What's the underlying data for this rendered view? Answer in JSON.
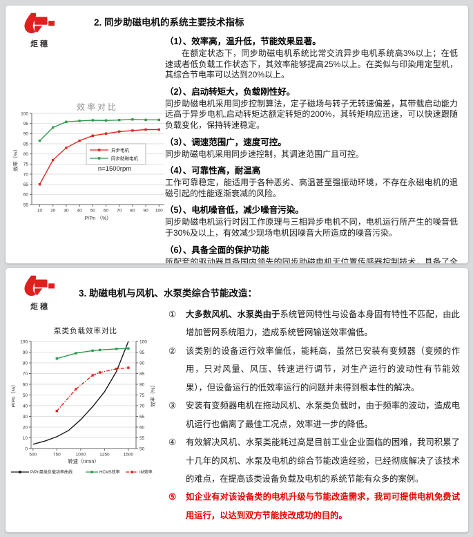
{
  "logo": {
    "text": "炬穗"
  },
  "section1": {
    "title": "2. 同步助磁电机的系统主要技术指标",
    "items": [
      {
        "heading": "（1）、效率高，温升低，节能效果显著。",
        "body": "在额定状态下，同步助磁电机系统比常交流异步电机系统高3%以上；在低速或者低负载工作状态下，其效率能够提高25%以上。在类似与印染用定型机，其综合节电率可以达到20%以上。"
      },
      {
        "heading": "（2）、启动转矩大，负载刚性好。",
        "body": "同步助磁电机采用同步控制算法，定子磁场与转子无转速偏差，其带载启动能力远高于异步电机,启动转矩达额定转矩的200%，其转矩响应迅速，可以快速跟随负载变化，保持转速稳定。"
      },
      {
        "heading": "（3）、调速范围广，速度可控。",
        "body": "同步助磁电机采用同步速控制，其调速范围广且可控。"
      },
      {
        "heading": "（4）、可靠性高，耐温高",
        "body": "工作可靠稳定，能适用于各种恶劣、高温甚至强振动环境，不存在永磁电机的退磁引起的性能逐渐衰减的风险。"
      },
      {
        "heading": "（5）、电机噪音低，减少噪音污染。",
        "body": "同步助磁电机运行时因工作原理与三相异步电机不同，电机运行所产生的噪音低于30%及以上，有效减少现场电机因噪音大所造成的噪音污染。"
      },
      {
        "heading": "（6）、具备全面的保护功能",
        "body": "所配套的驱动器具备国内领先的同步助磁电机无位置传感器控制技术，具备了全面的保护功能（过压、欠压、过流、短路、过载等）。"
      }
    ]
  },
  "section2": {
    "title": "3. 助磁电机与风机、水泵类综合节能改造：",
    "items": [
      {
        "num": "①",
        "lead": "大多数风机、水泵类由于",
        "body": "系统管网特性与设备本身固有特性不匹配，由此增加管网系统阻力，造成系统管网输送效率偏低。"
      },
      {
        "num": "②",
        "lead": "",
        "body": "该类别的设备运行效率偏低，能耗高，虽然已安装有变频器（变频的作用，只对风量、风压、转速进行调节，对生产运行的波动性有节能效果），但设备运行的低效率运行的问题并未得到根本性的解决。"
      },
      {
        "num": "③",
        "lead": "",
        "body": "安装有变频器电机在拖动风机、水泵类负载时，由于频率的波动，造成电机运行也偏离了最佳工况点，效率进一步的降低。"
      },
      {
        "num": "④",
        "lead": "",
        "body": "有效解决风机、水泵类能耗过高是目前工业企业面临的困难，我司积累了十几年的风机、水泵及电机的综合节能改造经验，已经彻底解决了该技术的难点，在提高该类设备负载及电机的系统节能有众多的案例。"
      },
      {
        "num": "⑤",
        "lead": "",
        "body": "如企业有对该设备类的电机升级与节能改造需求，我司可提供电机免费试用运行，以达到双方节能技改成功的目的。"
      }
    ]
  },
  "chart_data": [
    {
      "type": "line",
      "title": "效率对比",
      "xlabel": "P/Pn （%）",
      "annotation": "n=1500rpm",
      "grid": true,
      "legend_position": "inside-right",
      "x": [
        10,
        20,
        30,
        40,
        50,
        60,
        70,
        80,
        90,
        100
      ],
      "xticks": [
        10,
        20,
        30,
        40,
        50,
        60,
        70,
        80,
        90,
        100
      ],
      "xrange": [
        4,
        104
      ],
      "y_left": {
        "label": "效率（%）",
        "range": [
          55,
          100
        ],
        "ticks": [
          55,
          60,
          65,
          70,
          75,
          80,
          85,
          90,
          95,
          100
        ]
      },
      "series": [
        {
          "name": "异步电机",
          "color": "#e02420",
          "marker": true,
          "values": [
            65,
            77,
            83,
            86.5,
            89,
            90,
            91,
            91.5,
            92,
            92
          ]
        },
        {
          "name": "同步助磁电机",
          "color": "#31994e",
          "marker": true,
          "values": [
            86.5,
            93,
            95.8,
            96.3,
            96.6,
            96.5,
            96.7,
            97,
            96.8,
            96.8
          ]
        }
      ]
    },
    {
      "type": "line",
      "title": "泵类负载效率对比",
      "xlabel": "转速（r/min）",
      "grid": true,
      "legend_position": "bottom",
      "xticks": [
        500,
        750,
        1000,
        1250,
        1500
      ],
      "xrange": [
        480,
        1580
      ],
      "y_left": {
        "label": "P/Pn（%）",
        "range": [
          0,
          100
        ],
        "ticks": [
          0,
          10,
          20,
          30,
          40,
          50,
          60,
          70,
          80,
          90,
          100
        ]
      },
      "y_right": {
        "label": "效率（%）",
        "range": [
          50,
          100
        ],
        "ticks": [
          50,
          55,
          60,
          65,
          70,
          75,
          80,
          85,
          90,
          95,
          100
        ]
      },
      "series": [
        {
          "name": "P/Pn泵类负载功率曲线",
          "color": "#1a1a1a",
          "axis": "left",
          "x": [
            500,
            625,
            750,
            875,
            1000,
            1125,
            1250,
            1375,
            1500
          ],
          "values": [
            4,
            7,
            11,
            17,
            27,
            39,
            53,
            72,
            100
          ]
        },
        {
          "name": "HCMS效率",
          "color": "#31994e",
          "axis": "right",
          "marker": true,
          "x": [
            750,
            950,
            1125,
            1200,
            1375,
            1500
          ],
          "values": [
            92,
            94.5,
            95.7,
            96,
            96.5,
            96.7
          ]
        },
        {
          "name": "IM效率",
          "color": "#e02420",
          "axis": "right",
          "marker": true,
          "dash": "5,2,1.5,2",
          "x": [
            750,
            950,
            1125,
            1200,
            1375,
            1500
          ],
          "values": [
            67.5,
            77.7,
            84.2,
            85.5,
            87.2,
            87.7
          ]
        }
      ]
    }
  ]
}
